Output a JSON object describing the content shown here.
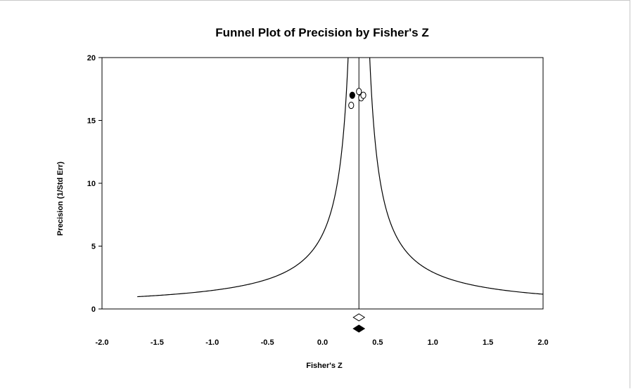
{
  "chart_data": {
    "type": "scatter",
    "title": "Funnel Plot of Precision by Fisher's Z",
    "xlabel": "Fisher's Z",
    "ylabel": "Precision (1/Std Err)",
    "xlim": [
      -2.0,
      2.0
    ],
    "ylim": [
      0,
      20
    ],
    "x_ticks": [
      "-2.0",
      "-1.5",
      "-1.0",
      "-0.5",
      "0.0",
      "0.5",
      "1.0",
      "1.5",
      "2.0"
    ],
    "y_ticks": [
      "0",
      "5",
      "10",
      "15",
      "20"
    ],
    "grid": false,
    "legend": "none",
    "funnel_center": 0.33,
    "series": [
      {
        "marker": "open-circle",
        "points": [
          {
            "x": 0.26,
            "y": 16.2
          },
          {
            "x": 0.33,
            "y": 17.3
          },
          {
            "x": 0.35,
            "y": 16.8
          },
          {
            "x": 0.37,
            "y": 17.0
          }
        ]
      },
      {
        "marker": "filled-circle",
        "points": [
          {
            "x": 0.27,
            "y": 17.0
          }
        ]
      }
    ],
    "summary_estimates": [
      {
        "marker": "open-diamond",
        "x": 0.33
      },
      {
        "marker": "filled-diamond",
        "x": 0.33
      }
    ],
    "colors": {
      "line": "#000000",
      "background": "#ffffff",
      "frame": "#c8c8c8"
    }
  }
}
